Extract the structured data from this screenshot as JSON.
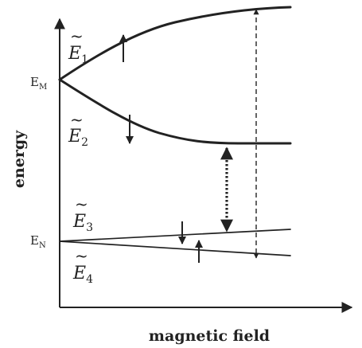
{
  "axes": {
    "ylabel": "energy",
    "xlabel": "magnetic field"
  },
  "levels": {
    "upper": {
      "label": "E",
      "subscript": "M"
    },
    "lower": {
      "label": "E",
      "subscript": "N"
    }
  },
  "states": [
    {
      "id": "E1",
      "symbol": "E",
      "subscript": "1",
      "tilde": "~",
      "spin": "up"
    },
    {
      "id": "E2",
      "symbol": "E",
      "subscript": "2",
      "tilde": "~",
      "spin": "down"
    },
    {
      "id": "E3",
      "symbol": "E",
      "subscript": "3",
      "tilde": "~",
      "spin": "down"
    },
    {
      "id": "E4",
      "symbol": "E",
      "subscript": "4",
      "tilde": "~",
      "spin": "up"
    }
  ],
  "transitions": [
    {
      "id": "dashed",
      "style": "dashed",
      "direction": "two-way"
    },
    {
      "id": "dotted",
      "style": "dotted",
      "direction": "two-way"
    }
  ]
}
